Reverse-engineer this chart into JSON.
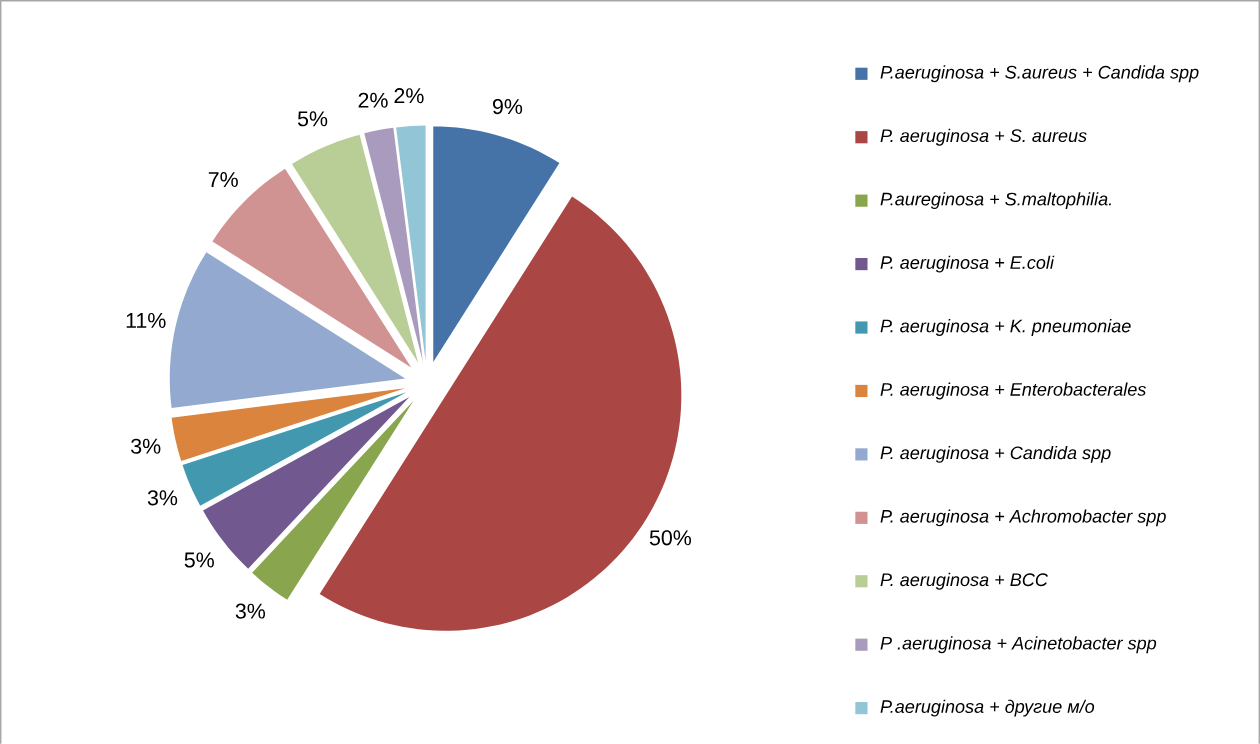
{
  "chart_data": {
    "type": "pie",
    "categories": [
      "P.aeruginosa + S.aureus + Candida spp",
      "P. aeruginosa + S. aureus",
      "P.aureginosa + S.maltophilia.",
      "P. aeruginosa + E.coli",
      "P. aeruginosa + K. pneumoniae",
      "P. aeruginosa + Enterobacterales",
      "P. aeruginosa + Candida spp",
      "P. aeruginosa + Achromobacter spp",
      "P. aeruginosa + BCC",
      "P .aeruginosa + Acinetobacter spp",
      "P.aeruginosa + другие м/о"
    ],
    "values": [
      9,
      50,
      3,
      5,
      3,
      3,
      11,
      7,
      5,
      2,
      2
    ],
    "value_labels": [
      "9%",
      "50%",
      "3%",
      "5%",
      "3%",
      "3%",
      "11%",
      "7%",
      "5%",
      "2%",
      "2%"
    ],
    "colors": [
      "#4572a7",
      "#aa4643",
      "#89a54e",
      "#71588f",
      "#4198af",
      "#db843d",
      "#93a9cf",
      "#d19392",
      "#b9cd96",
      "#a99bbd",
      "#92c5d5"
    ],
    "legend": "right"
  }
}
